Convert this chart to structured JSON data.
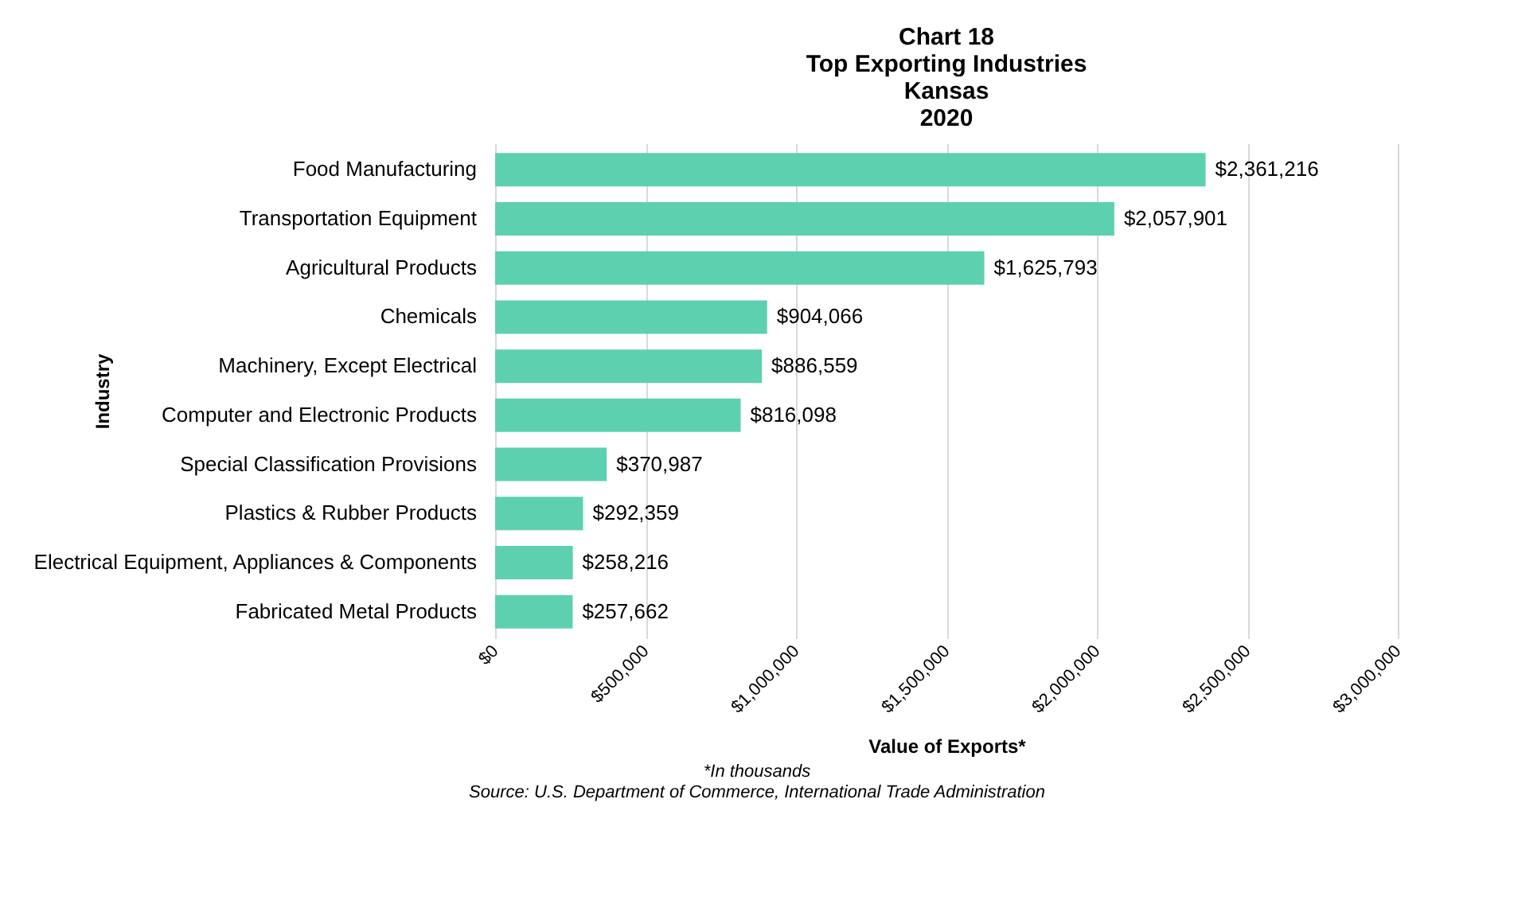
{
  "chart_data": {
    "type": "bar",
    "orientation": "horizontal",
    "title": "Chart 18\nTop Exporting Industries\nKansas\n2020",
    "xlabel": "Value of Exports*",
    "ylabel": "Industry",
    "categories": [
      "Food Manufacturing",
      "Transportation Equipment",
      "Agricultural Products",
      "Chemicals",
      "Machinery, Except Electrical",
      "Computer and Electronic Products",
      "Special Classification Provisions",
      "Plastics & Rubber Products",
      "Electrical Equipment, Appliances & Components",
      "Fabricated Metal Products"
    ],
    "values": [
      2361216,
      2057901,
      1625793,
      904066,
      886559,
      816098,
      370987,
      292359,
      258216,
      257662
    ],
    "value_labels": [
      "$2,361,216",
      "$2,057,901",
      "$1,625,793",
      "$904,066",
      "$886,559",
      "$816,098",
      "$370,987",
      "$292,359",
      "$258,216",
      "$257,662"
    ],
    "color": "#5dd0b0",
    "xlim": [
      0,
      3000000
    ],
    "xticks": [
      {
        "value": 0,
        "label": "$0"
      },
      {
        "value": 500000,
        "label": "$500,000"
      },
      {
        "value": 1000000,
        "label": "$1,000,000"
      },
      {
        "value": 1500000,
        "label": "$1,500,000"
      },
      {
        "value": 2000000,
        "label": "$2,000,000"
      },
      {
        "value": 2500000,
        "label": "$2,500,000"
      },
      {
        "value": 3000000,
        "label": "$3,000,000"
      }
    ],
    "grid": "x",
    "annotations": [
      "*In thousands",
      "Source: U.S. Department of Commerce, International Trade Administration"
    ]
  }
}
